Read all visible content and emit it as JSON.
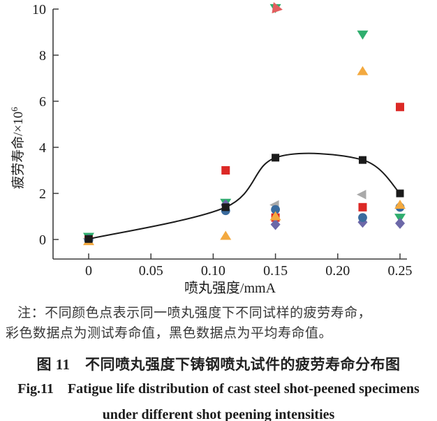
{
  "figure": {
    "note": {
      "line1": "注：不同颜色点表示同一喷丸强度下不同试样的疲劳寿命，",
      "line2": "彩色数据点为测试寿命值，黑色数据点为平均寿命值。"
    },
    "caption_zh": "图 11　不同喷丸强度下铸钢喷丸试件的疲劳寿命分布图",
    "caption_en_line1": "Fig.11　Fatigue life distribution of cast steel shot-peened specimens",
    "caption_en_line2": "under different shot peening intensities"
  },
  "chart_data": {
    "type": "scatter",
    "title": "",
    "xlabel": "喷丸强度/mmA",
    "ylabel": "疲劳寿命/×10⁶",
    "ylabel_base": "疲劳寿命/×10",
    "ylabel_sup": "6",
    "xlim": [
      -0.0286,
      0.2556
    ],
    "ylim": [
      -0.85,
      10
    ],
    "grid": false,
    "legend": "none",
    "x_ticks": [
      {
        "value": 0,
        "label": "0"
      },
      {
        "value": 0.05,
        "label": "0.05"
      },
      {
        "value": 0.1,
        "label": "0.10"
      },
      {
        "value": 0.15,
        "label": "0.15"
      },
      {
        "value": 0.2,
        "label": "0.20"
      },
      {
        "value": 0.25,
        "label": "0.25"
      }
    ],
    "y_ticks": [
      {
        "value": 0,
        "label": "0"
      },
      {
        "value": 2,
        "label": "2"
      },
      {
        "value": 4,
        "label": "4"
      },
      {
        "value": 6,
        "label": "6"
      },
      {
        "value": 8,
        "label": "8"
      },
      {
        "value": 10,
        "label": "10"
      }
    ],
    "series": [
      {
        "name": "specimen-gray",
        "marker": "triangle-left",
        "color": "#a9a9a9",
        "points": [
          [
            0,
            0.04
          ],
          [
            0.15,
            1.5
          ],
          [
            0.22,
            1.95
          ]
        ]
      },
      {
        "name": "specimen-red",
        "marker": "square",
        "color": "#dc2926",
        "points": [
          [
            0,
            0.1
          ],
          [
            0.11,
            3.0
          ],
          [
            0.15,
            0.95
          ],
          [
            0.22,
            1.4
          ],
          [
            0.25,
            5.75
          ]
        ]
      },
      {
        "name": "specimen-green",
        "marker": "triangle-down",
        "color": "#2fae6e",
        "points": [
          [
            0,
            0.12
          ],
          [
            0.11,
            1.6
          ],
          [
            0.15,
            10.05
          ],
          [
            0.22,
            8.9
          ],
          [
            0.25,
            0.95
          ]
        ]
      },
      {
        "name": "specimen-purple",
        "marker": "diamond",
        "color": "#6c68a8",
        "points": [
          [
            0,
            0.0
          ],
          [
            0.11,
            1.5
          ],
          [
            0.15,
            0.65
          ],
          [
            0.22,
            0.75
          ],
          [
            0.25,
            0.7
          ]
        ]
      },
      {
        "name": "specimen-blue",
        "marker": "circle",
        "color": "#3a6b9e",
        "points": [
          [
            0,
            -0.03
          ],
          [
            0.11,
            1.25
          ],
          [
            0.15,
            1.3
          ],
          [
            0.22,
            0.95
          ],
          [
            0.25,
            1.4
          ]
        ]
      },
      {
        "name": "specimen-orange",
        "marker": "triangle-up",
        "color": "#f3a93f",
        "points": [
          [
            0,
            -0.08
          ],
          [
            0.11,
            0.15
          ],
          [
            0.15,
            1.0
          ],
          [
            0.22,
            7.3
          ],
          [
            0.25,
            1.5
          ]
        ]
      },
      {
        "name": "specimen-red-rotated",
        "marker": "triangle-sw",
        "color": "#e25f5f",
        "points": [
          [
            0.15,
            10.0
          ]
        ]
      }
    ],
    "average_series": {
      "name": "average-life",
      "marker": "square",
      "color": "#1b1b1b",
      "line": true,
      "points": [
        [
          0,
          0.02
        ],
        [
          0.11,
          1.4
        ],
        [
          0.15,
          3.55
        ],
        [
          0.22,
          3.45
        ],
        [
          0.25,
          2.0
        ]
      ]
    }
  }
}
